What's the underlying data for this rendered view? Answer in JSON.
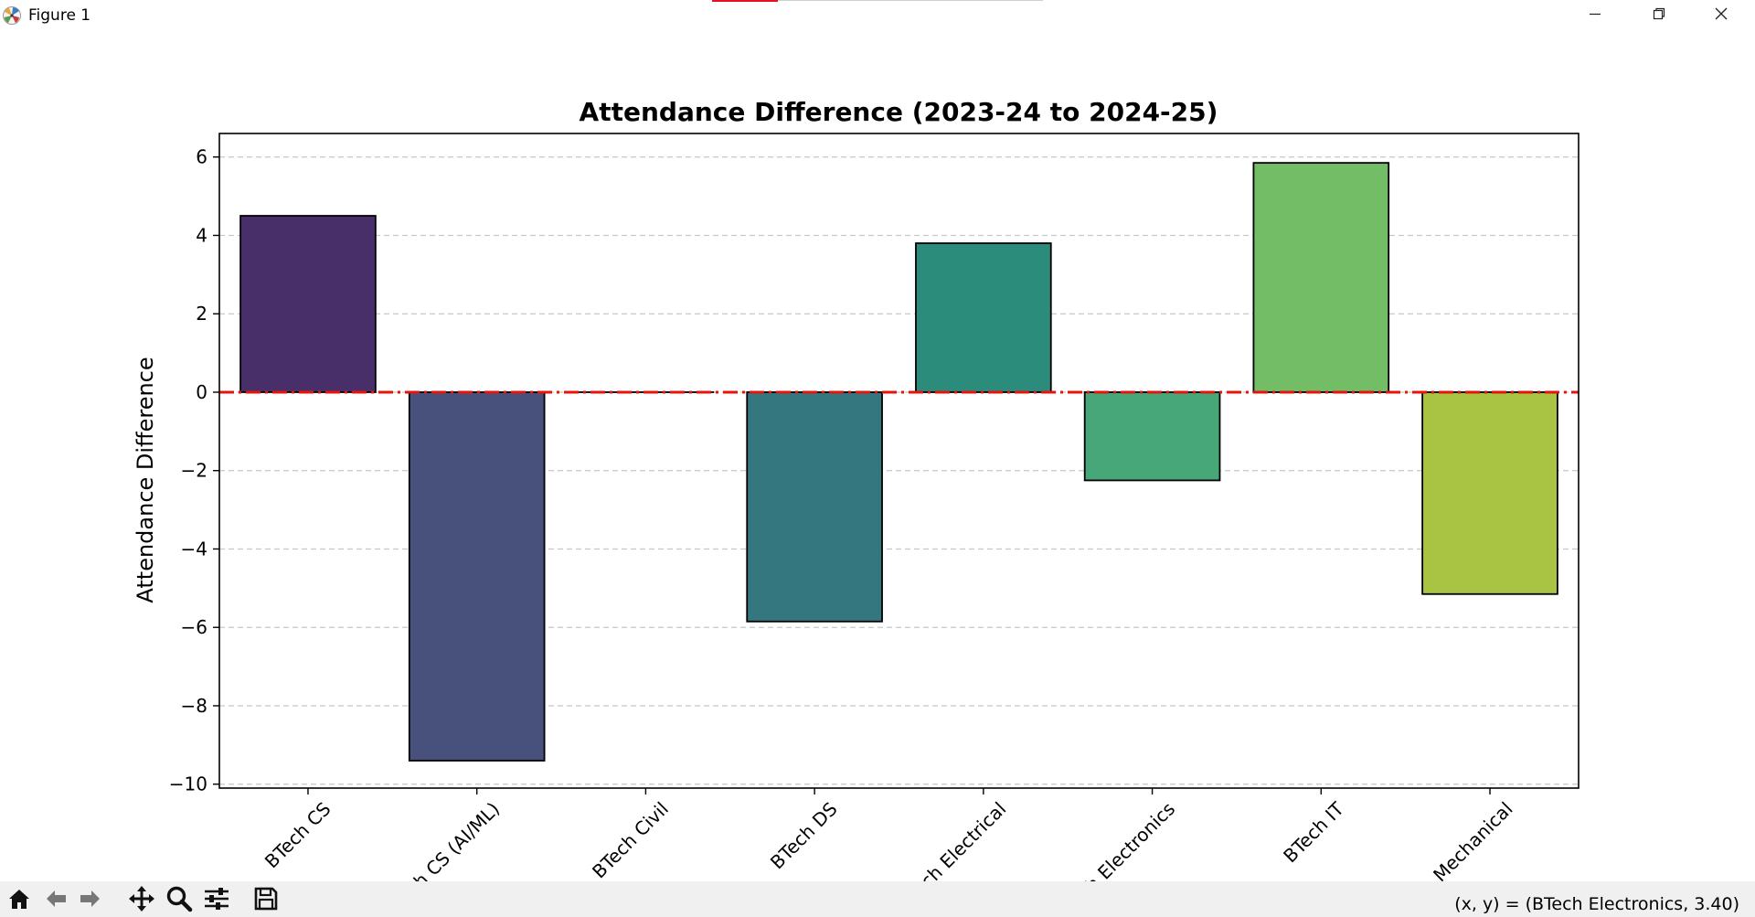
{
  "window": {
    "title": "Figure 1",
    "controls": {
      "minimize": "minimize-icon",
      "restore": "restore-icon",
      "close": "close-icon"
    }
  },
  "toolbar": {
    "buttons": [
      "home-icon",
      "back-icon",
      "forward-icon",
      "pan-icon",
      "zoom-icon",
      "configure-subplots-icon",
      "save-icon"
    ],
    "coords": "(x, y) = (BTech Electronics, 3.40)"
  },
  "chart_data": {
    "type": "bar",
    "title": "Attendance Difference (2023-24 to 2024-25)",
    "xlabel": "",
    "ylabel": "Attendance Difference",
    "categories": [
      "BTech CS",
      "BTech CS (AI/ML)",
      "BTech Civil",
      "BTech DS",
      "BTech Electrical",
      "BTech Electronics",
      "BTech IT",
      "BTech Mechanical"
    ],
    "values": [
      4.5,
      -9.4,
      0.0,
      -5.85,
      3.8,
      -2.25,
      5.85,
      -5.15
    ],
    "colors": [
      "#482f6a",
      "#48507c",
      "#3a6e80",
      "#34777f",
      "#2c8c7c",
      "#48a778",
      "#74bd67",
      "#a8c442"
    ],
    "ylim": [
      -10.1,
      6.6
    ],
    "yticks": [
      6,
      4,
      2,
      0,
      -2,
      -4,
      -6,
      -8,
      -10
    ],
    "ytick_labels": [
      "6",
      "4",
      "2",
      "0",
      "−2",
      "−4",
      "−6",
      "−8",
      "−10"
    ],
    "grid": "y-dashed",
    "reference_line": {
      "y": 0,
      "color": "#e8140c",
      "style": "dash-dot"
    }
  }
}
